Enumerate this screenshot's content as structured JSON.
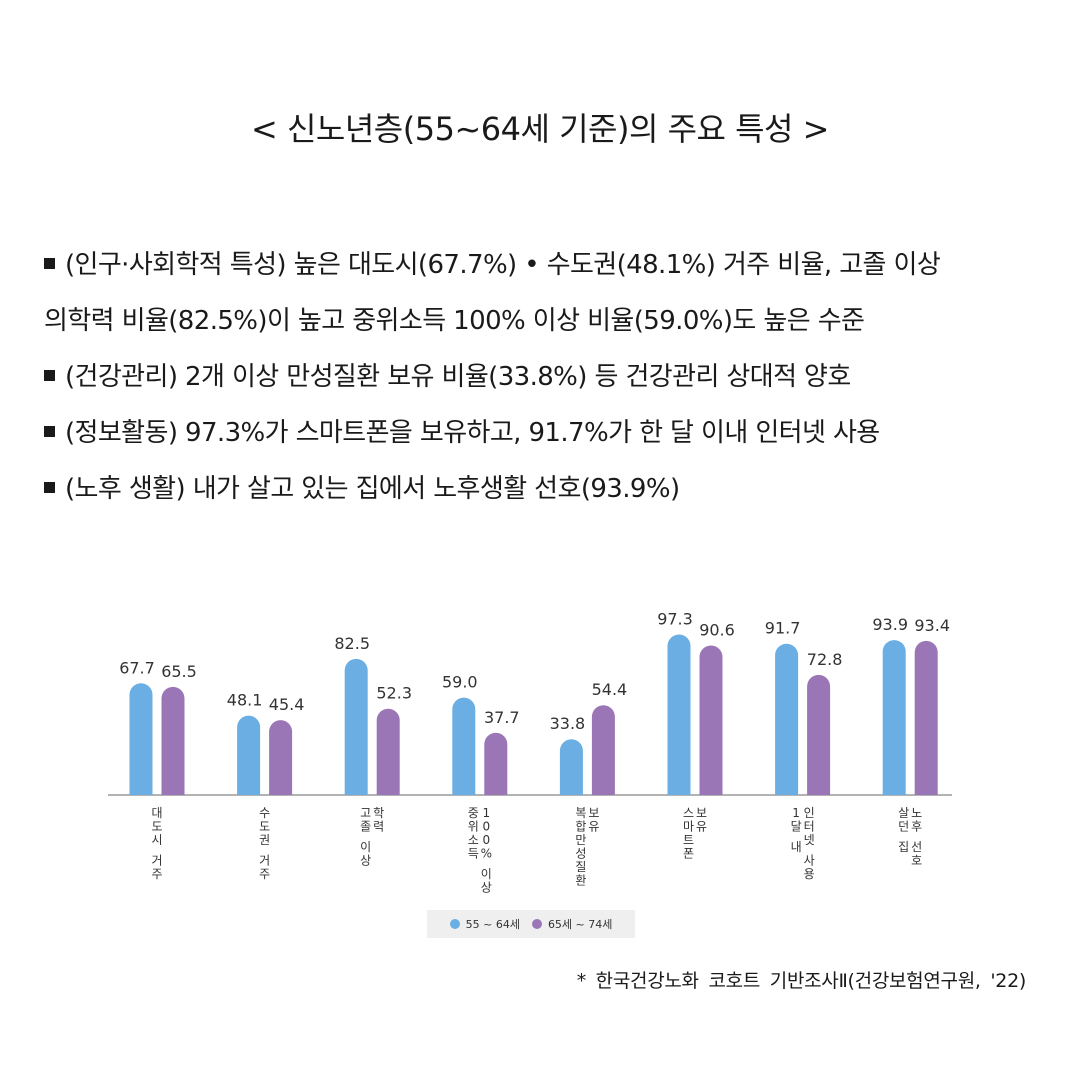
{
  "title": "< 신노년층(55~64세 기준)의 주요 특성 >",
  "bullets": [
    "(인구·사회학적 특성) 높은 대도시(67.7%) • 수도권(48.1%) 거주 비율, 고졸 이상",
    "의학력 비율(82.5%)이 높고 중위소득 100% 이상 비율(59.0%)도 높은 수준",
    "(건강관리) 2개 이상 만성질환 보유 비율(33.8%) 등 건강관리 상대적 양호",
    "(정보활동) 97.3%가 스마트폰을 보유하고, 91.7%가 한 달 이내 인터넷 사용",
    "(노후 생활) 내가 살고 있는 집에서 노후생활 선호(93.9%)"
  ],
  "bullet_marks": [
    true,
    false,
    true,
    true,
    true
  ],
  "chart_data": {
    "type": "bar",
    "categories": [
      [
        "대도시 거주"
      ],
      [
        "수도권 거주"
      ],
      [
        "고졸 이상",
        "학력"
      ],
      [
        "중위소득",
        "100% 이상"
      ],
      [
        "복합만성질환",
        "보유"
      ],
      [
        "스마트폰",
        "보유"
      ],
      [
        "1달 내",
        "인터넷 사용"
      ],
      [
        "살던 집",
        "노후 선호"
      ]
    ],
    "series": [
      {
        "name": "55 ~ 64세",
        "color": "#6aaee3",
        "values": [
          67.7,
          48.1,
          82.5,
          59.0,
          33.8,
          97.3,
          91.7,
          93.9
        ]
      },
      {
        "name": "65세 ~ 74세",
        "color": "#9b76b6",
        "values": [
          65.5,
          45.4,
          52.3,
          37.7,
          54.4,
          90.6,
          72.8,
          93.4
        ]
      }
    ],
    "ylim": [
      0,
      100
    ],
    "legend": "bottom",
    "grid": false,
    "value_labels": [
      [
        "67.7",
        "48.1",
        "82.5",
        "59.0",
        "33.8",
        "97.3",
        "91.7",
        "93.9"
      ],
      [
        "65.5",
        "45.4",
        "52.3",
        "37.7",
        "54.4",
        "90.6",
        "72.8",
        "93.4"
      ]
    ]
  },
  "source": "* 한국건강노화 코호트 기반조사Ⅱ(건강보험연구원, '22)"
}
